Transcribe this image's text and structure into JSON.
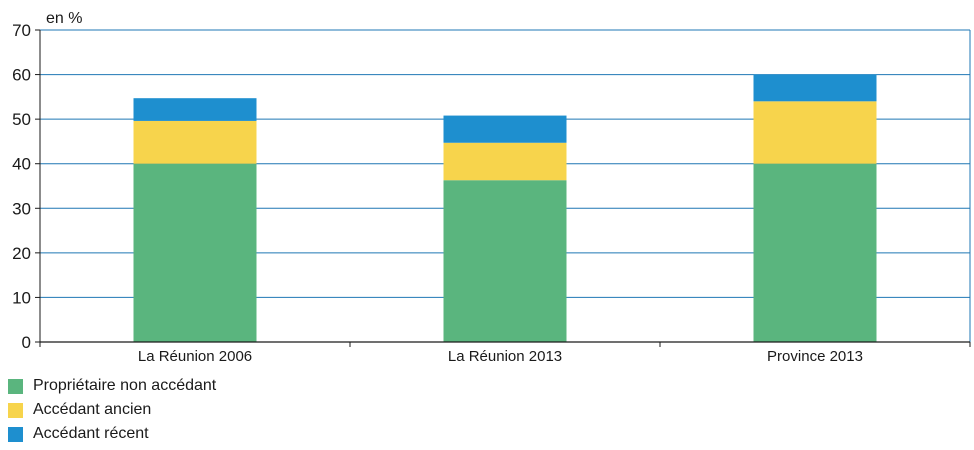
{
  "chart_data": {
    "type": "bar",
    "stacked": true,
    "unit_label": "en %",
    "categories": [
      "La Réunion 2006",
      "La Réunion 2013",
      "Province 2013"
    ],
    "series": [
      {
        "name": "Propriétaire non accédant",
        "color": "#5ab57e",
        "values": [
          40,
          36.3,
          40
        ]
      },
      {
        "name": "Accédant ancien",
        "color": "#f7d44c",
        "values": [
          9.6,
          8.4,
          14
        ]
      },
      {
        "name": "Accédant récent",
        "color": "#1e8fcf",
        "values": [
          5.1,
          6.1,
          6
        ]
      }
    ],
    "ylim": [
      0,
      70
    ],
    "yticks": [
      0,
      10,
      20,
      30,
      40,
      50,
      60,
      70
    ],
    "grid": true,
    "legend_position": "bottom-left"
  }
}
